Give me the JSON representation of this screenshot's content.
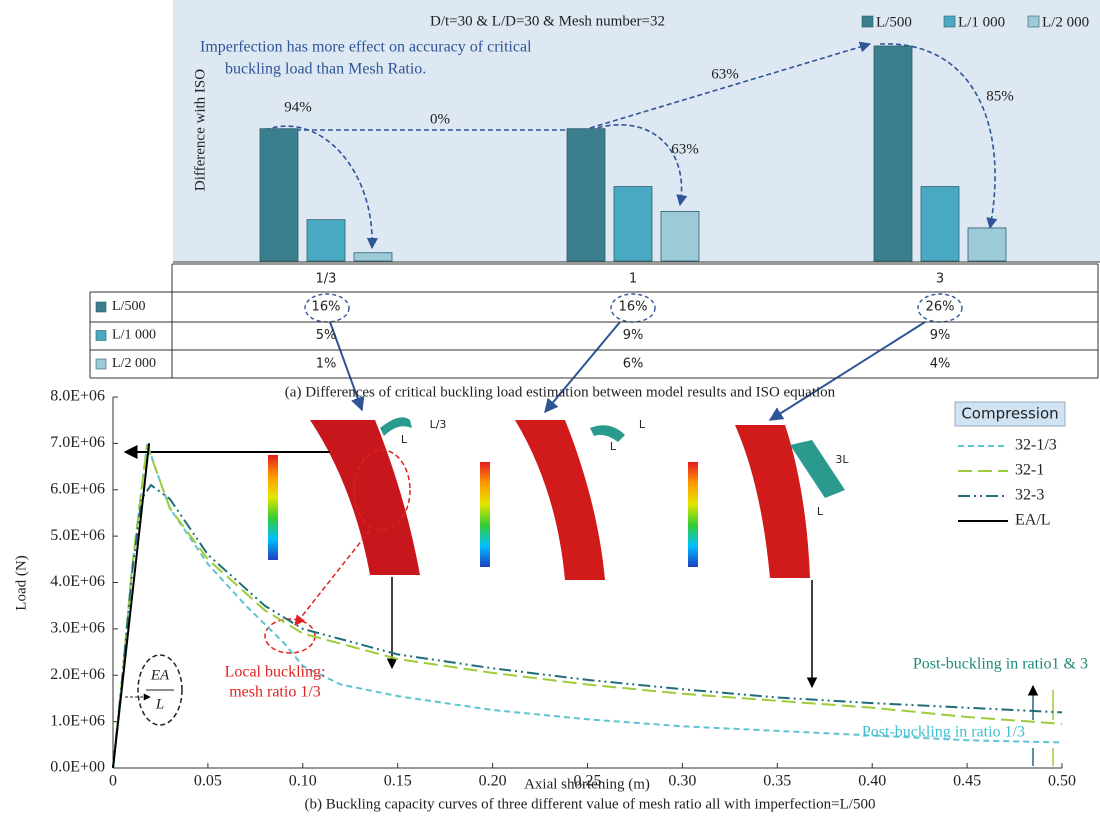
{
  "chart_data": [
    {
      "type": "bar",
      "title": "D/t=30 & L/D=30 & Mesh number=32",
      "y_label": "Difference with ISO",
      "annotation_lines": [
        "Imperfection has more effect on accuracy of critical",
        "buckling load than Mesh Ratio."
      ],
      "change_labels": [
        "94%",
        "0%",
        "63%",
        "63%",
        "85%"
      ],
      "categories": [
        "1/3",
        "1",
        "3"
      ],
      "series": [
        {
          "name": "L/500",
          "color": "#3b7f8e",
          "values": [
            16,
            16,
            26
          ],
          "value_labels": [
            "16%",
            "16%",
            "26%"
          ]
        },
        {
          "name": "L/1 000",
          "color": "#4aa9c2",
          "values": [
            5,
            9,
            9
          ],
          "value_labels": [
            "5%",
            "9%",
            "9%"
          ]
        },
        {
          "name": "L/2 000",
          "color": "#9ccad8",
          "values": [
            1,
            6,
            4
          ],
          "value_labels": [
            "1%",
            "6%",
            "4%"
          ]
        }
      ],
      "caption": "(a) Differences of critical buckling load estimation between model results and ISO equation"
    },
    {
      "type": "line",
      "x_label": "Axial shortening (m)",
      "y_label": "Load (N)",
      "legend_title": "Compression",
      "caption": "(b) Buckling capacity curves of three different value of mesh ratio all with imperfection=L/500",
      "annotations": {
        "local_buckling": [
          "Local buckling:",
          "mesh ratio 1/3"
        ],
        "post_13": "Post-buckling in ratio1 & 3",
        "post_1_3": "Post-buckling in ratio 1/3",
        "ea_num": "EA",
        "ea_den": "L",
        "inset_labels": [
          "L/3",
          "L",
          "L",
          "L",
          "3L",
          "L"
        ]
      },
      "xlim": [
        0,
        0.5
      ],
      "ylim": [
        0,
        8000000
      ],
      "xticks": [
        0,
        0.05,
        {
          "value": 0.1,
          "label": "0.10"
        },
        0.15,
        {
          "value": 0.2,
          "label": "0.20"
        },
        0.25,
        {
          "value": 0.3,
          "label": "0.30"
        },
        0.35,
        {
          "value": 0.4,
          "label": "0.40"
        },
        0.45,
        {
          "value": 0.5,
          "label": "0.50"
        }
      ],
      "yticks": [
        {
          "value": 0,
          "label": "0.0E+00"
        },
        {
          "value": 1000000,
          "label": "1.0E+06"
        },
        {
          "value": 2000000,
          "label": "2.0E+06"
        },
        {
          "value": 3000000,
          "label": "3.0E+06"
        },
        {
          "value": 4000000,
          "label": "4.0E+06"
        },
        {
          "value": 5000000,
          "label": "5.0E+06"
        },
        {
          "value": 6000000,
          "label": "6.0E+06"
        },
        {
          "value": 7000000,
          "label": "7.0E+06"
        },
        {
          "value": 8000000,
          "label": "8.0E+06"
        }
      ],
      "series": [
        {
          "name": "32-1/3",
          "color": "#5ec3d3",
          "linestyle": "dashed",
          "x": [
            0,
            0.005,
            0.01,
            0.015,
            0.018,
            0.022,
            0.03,
            0.05,
            0.07,
            0.09,
            0.1,
            0.12,
            0.15,
            0.2,
            0.25,
            0.3,
            0.35,
            0.4,
            0.45,
            0.5
          ],
          "values": [
            0,
            2000000,
            4300000,
            6000000,
            7000000,
            6500000,
            5600000,
            4400000,
            3500000,
            2700000,
            2200000,
            1800000,
            1550000,
            1250000,
            1050000,
            900000,
            800000,
            700000,
            600000,
            550000
          ]
        },
        {
          "name": "32-1",
          "color": "#9dcc3a",
          "linestyle": "long-dashed",
          "x": [
            0,
            0.005,
            0.01,
            0.015,
            0.018,
            0.022,
            0.03,
            0.05,
            0.08,
            0.1,
            0.15,
            0.2,
            0.25,
            0.3,
            0.35,
            0.4,
            0.45,
            0.5
          ],
          "values": [
            0,
            2000000,
            4300000,
            6000000,
            6950000,
            6500000,
            5600000,
            4500000,
            3400000,
            2900000,
            2350000,
            2050000,
            1800000,
            1600000,
            1450000,
            1300000,
            1100000,
            950000
          ]
        },
        {
          "name": "32-3",
          "color": "#1f6d78",
          "linestyle": "dash-dot",
          "x": [
            0,
            0.005,
            0.01,
            0.015,
            0.02,
            0.03,
            0.05,
            0.08,
            0.1,
            0.15,
            0.2,
            0.25,
            0.3,
            0.35,
            0.4,
            0.45,
            0.5
          ],
          "values": [
            0,
            2000000,
            4200000,
            5800000,
            6100000,
            5800000,
            4600000,
            3500000,
            3000000,
            2450000,
            2150000,
            1900000,
            1700000,
            1520000,
            1400000,
            1300000,
            1200000
          ]
        },
        {
          "name": "EA/L",
          "color": "#000000",
          "linestyle": "solid",
          "x": [
            0,
            0.019
          ],
          "values": [
            0,
            7000000
          ]
        }
      ]
    }
  ]
}
